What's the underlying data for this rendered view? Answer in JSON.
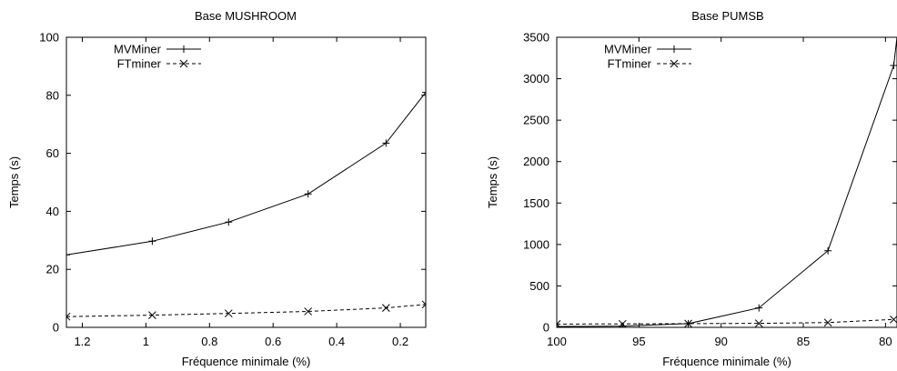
{
  "chart_data": [
    {
      "type": "line",
      "title": "Base MUSHROOM",
      "xlabel": "Fréquence minimale (%)",
      "ylabel": "Temps (s)",
      "xlim": [
        1.25,
        0.12
      ],
      "ylim": [
        0,
        100
      ],
      "x_reversed": true,
      "xticks": [
        1.2,
        1,
        0.8,
        0.6,
        0.4,
        0.2
      ],
      "xtick_labels": [
        "1.2",
        "1",
        "0.8",
        "0.6",
        "0.4",
        "0.2"
      ],
      "yticks": [
        0,
        20,
        40,
        60,
        80,
        100
      ],
      "ytick_labels": [
        "0",
        "20",
        "40",
        "60",
        "80",
        "100"
      ],
      "legend_position": "top-left",
      "series": [
        {
          "name": "MVMiner",
          "style": "solid",
          "marker": "plus",
          "x": [
            1.25,
            0.98,
            0.74,
            0.49,
            0.245,
            0.12
          ],
          "y": [
            25,
            29.7,
            36.3,
            46,
            63.5,
            81
          ]
        },
        {
          "name": "FTminer",
          "style": "dashed",
          "marker": "cross",
          "x": [
            1.25,
            0.98,
            0.74,
            0.49,
            0.245,
            0.12
          ],
          "y": [
            3.7,
            4.2,
            4.8,
            5.5,
            6.7,
            7.9
          ]
        }
      ]
    },
    {
      "type": "line",
      "title": "Base PUMSB",
      "xlabel": "Fréquence minimale (%)",
      "ylabel": "Temps (s)",
      "xlim": [
        100,
        79.3
      ],
      "ylim": [
        0,
        3500
      ],
      "x_reversed": true,
      "xticks": [
        100,
        95,
        90,
        85,
        80
      ],
      "xtick_labels": [
        "100",
        "95",
        "90",
        "85",
        "80"
      ],
      "yticks": [
        0,
        500,
        1000,
        1500,
        2000,
        2500,
        3000,
        3500
      ],
      "ytick_labels": [
        "0",
        "500",
        "1000",
        "1500",
        "2000",
        "2500",
        "3000",
        "3500"
      ],
      "legend_position": "top-left",
      "series": [
        {
          "name": "MVMiner",
          "style": "solid",
          "marker": "plus",
          "x": [
            100,
            96,
            92,
            87.7,
            83.5,
            79.5,
            79.3
          ],
          "y": [
            10,
            15,
            45,
            235,
            925,
            3160,
            3500
          ]
        },
        {
          "name": "FTminer",
          "style": "dashed",
          "marker": "cross",
          "x": [
            100,
            96,
            92,
            87.7,
            83.5,
            79.5
          ],
          "y": [
            40,
            42,
            45,
            48,
            58,
            95
          ]
        }
      ]
    }
  ]
}
